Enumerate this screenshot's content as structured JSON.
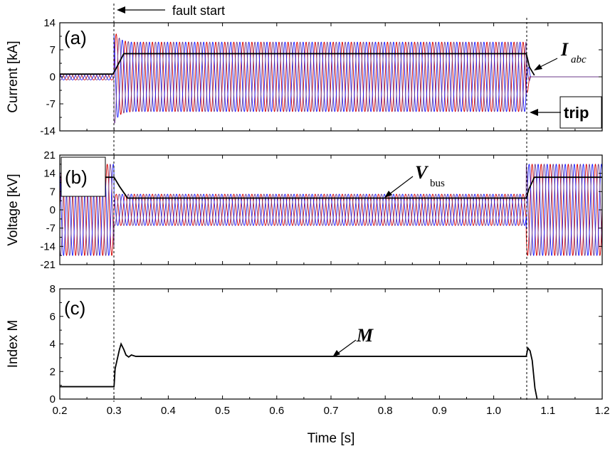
{
  "chart_data": [
    {
      "type": "line",
      "panel": "(a)",
      "ylabel": "Current [kA]",
      "xlim": [
        0.2,
        1.2
      ],
      "ylim": [
        -14,
        14
      ],
      "yticks": [
        "14",
        "7",
        "0",
        "-7",
        "-14"
      ],
      "series": [
        {
          "kind": "three-phase",
          "pre_amp": 0.8,
          "fault_amp": 9.0,
          "post_amp": 0,
          "cycles_per_s": 60
        },
        {
          "kind": "envelope",
          "x": [
            0.2,
            0.298,
            0.305,
            0.318,
            1.06,
            1.066,
            1.075
          ],
          "y": [
            0.7,
            0.7,
            2.5,
            6.0,
            6.0,
            2.5,
            0.4
          ]
        }
      ],
      "annotations": [
        {
          "text": "fault start",
          "x": 0.3,
          "y": 14
        },
        {
          "text": "I",
          "sub": "abc"
        },
        {
          "text": "trip"
        }
      ],
      "fault_start": 0.3,
      "fault_end": 1.06
    },
    {
      "type": "line",
      "panel": "(b)",
      "ylabel": "Voltage [kV]",
      "xlim": [
        0.2,
        1.2
      ],
      "ylim": [
        -21,
        21
      ],
      "yticks": [
        "21",
        "14",
        "7",
        "0",
        "-7",
        "-14",
        "-21"
      ],
      "series": [
        {
          "kind": "three-phase",
          "pre_amp": 17.5,
          "fault_amp": 6.0,
          "post_amp": 17.5,
          "cycles_per_s": 60
        },
        {
          "kind": "envelope",
          "x": [
            0.2,
            0.3,
            0.31,
            0.325,
            1.06,
            1.065,
            1.075,
            1.2
          ],
          "y": [
            12.5,
            12.5,
            9.0,
            4.5,
            4.5,
            8.0,
            12.5,
            12.5
          ]
        }
      ],
      "annotations": [
        {
          "text": "V",
          "sub": "bus"
        }
      ]
    },
    {
      "type": "line",
      "panel": "(c)",
      "ylabel": "Index M",
      "xlabel": "Time [s]",
      "xlim": [
        0.2,
        1.2
      ],
      "ylim": [
        0,
        8
      ],
      "yticks": [
        "8",
        "6",
        "4",
        "2",
        "0"
      ],
      "xticks": [
        "0.2",
        "0.3",
        "0.4",
        "0.5",
        "0.6",
        "0.7",
        "0.8",
        "0.9",
        "1.0",
        "1.1",
        "1.2"
      ],
      "series": [
        {
          "name": "M",
          "x": [
            0.2,
            0.3,
            0.302,
            0.31,
            0.313,
            0.318,
            0.322,
            0.327,
            0.332,
            0.34,
            0.35,
            1.06,
            1.063,
            1.067,
            1.071,
            1.076,
            1.08
          ],
          "y": [
            0.9,
            0.9,
            2.2,
            3.6,
            4.0,
            3.6,
            3.2,
            3.05,
            3.2,
            3.1,
            3.1,
            3.1,
            3.7,
            3.5,
            2.8,
            0.8,
            0
          ]
        }
      ],
      "annotations": [
        {
          "text": "M"
        }
      ]
    }
  ],
  "colors": {
    "phase_a": "#d40000",
    "phase_b": "#1a1aff",
    "phase_c": "#6b3a8a",
    "envelope": "#000000"
  }
}
